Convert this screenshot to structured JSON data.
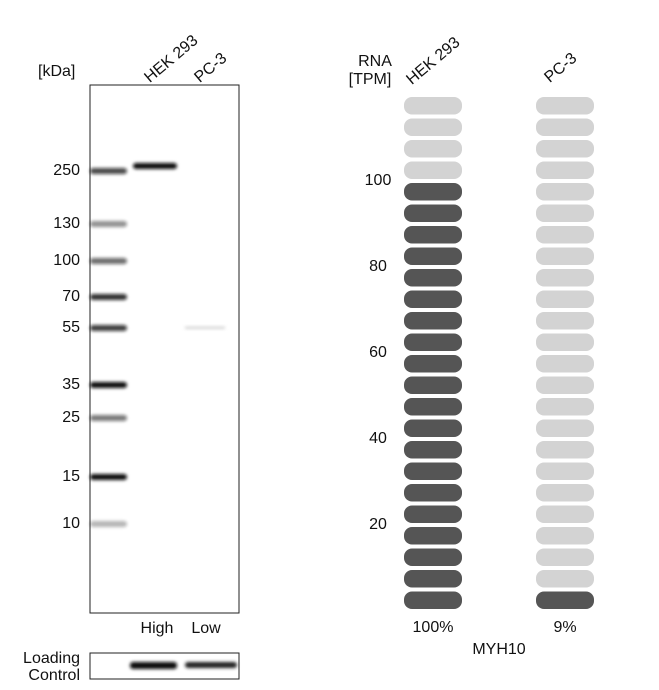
{
  "western_blot": {
    "unit_label": "[kDa]",
    "lanes": [
      "HEK 293",
      "PC-3"
    ],
    "markers": [
      "250",
      "130",
      "100",
      "70",
      "55",
      "35",
      "25",
      "15",
      "10"
    ],
    "lane_levels": [
      "High",
      "Low"
    ],
    "loading_control": [
      "Loading",
      "Control"
    ]
  },
  "chart_data": {
    "type": "segmented-bar",
    "axis_label": [
      "RNA",
      "[TPM]"
    ],
    "categories": [
      "HEK 293",
      "PC-3"
    ],
    "values": [
      100,
      9
    ],
    "value_labels": [
      "100%",
      "9%"
    ],
    "ylim": [
      0,
      120
    ],
    "yticks": [
      20,
      40,
      60,
      80,
      100
    ],
    "color": "#555555",
    "empty_color": "#d3d3d3",
    "gene": "MYH10"
  }
}
